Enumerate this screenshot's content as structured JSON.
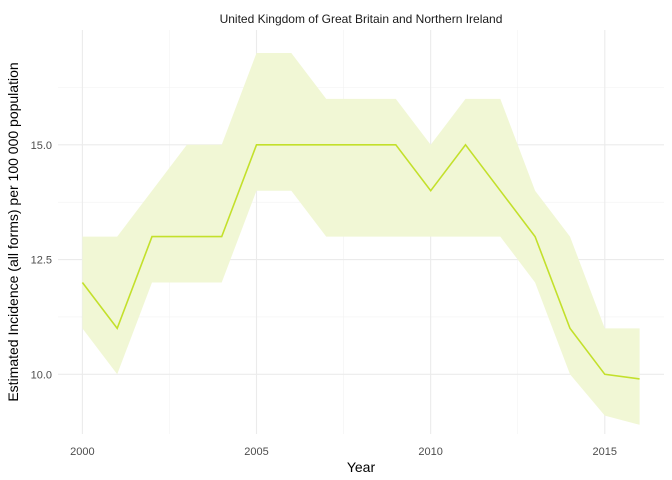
{
  "chart_data": {
    "type": "line",
    "title": "United Kingdom of Great Britain and Northern Ireland",
    "xlabel": "Year",
    "ylabel": "Estimated Incidence (all forms) per 100 000 population",
    "xlim": [
      1999.3,
      2016.7
    ],
    "ylim": [
      8.7,
      17.5
    ],
    "x_ticks": [
      2000,
      2005,
      2010,
      2015
    ],
    "x_tick_labels": [
      "2000",
      "2005",
      "2010",
      "2015"
    ],
    "x_minor_ticks": [
      2002.5,
      2007.5,
      2012.5
    ],
    "y_ticks": [
      10,
      12.5,
      15
    ],
    "y_tick_labels": [
      "10.0",
      "12.5",
      "15.0"
    ],
    "y_minor_ticks": [
      11.25,
      13.75,
      16.25
    ],
    "grid": true,
    "legend": "none",
    "colors": {
      "line": "#c3e02b",
      "band": "#f1f7d5"
    },
    "series": [
      {
        "x": [
          2000,
          2001,
          2002,
          2003,
          2004,
          2005,
          2006,
          2007,
          2008,
          2009,
          2010,
          2011,
          2012,
          2013,
          2014,
          2015,
          2016
        ],
        "values": [
          12,
          11,
          13,
          13,
          13,
          15,
          15,
          15,
          15,
          15,
          14,
          15,
          14,
          13,
          11,
          10,
          9.9
        ],
        "lower": [
          11,
          10,
          12,
          12,
          12,
          14,
          14,
          13,
          13,
          13,
          13,
          13,
          13,
          12,
          10,
          9.1,
          8.9
        ],
        "upper": [
          13,
          13,
          14,
          15,
          15,
          17,
          17,
          16,
          16,
          16,
          15,
          16,
          16,
          14,
          13,
          11,
          11
        ]
      }
    ]
  }
}
